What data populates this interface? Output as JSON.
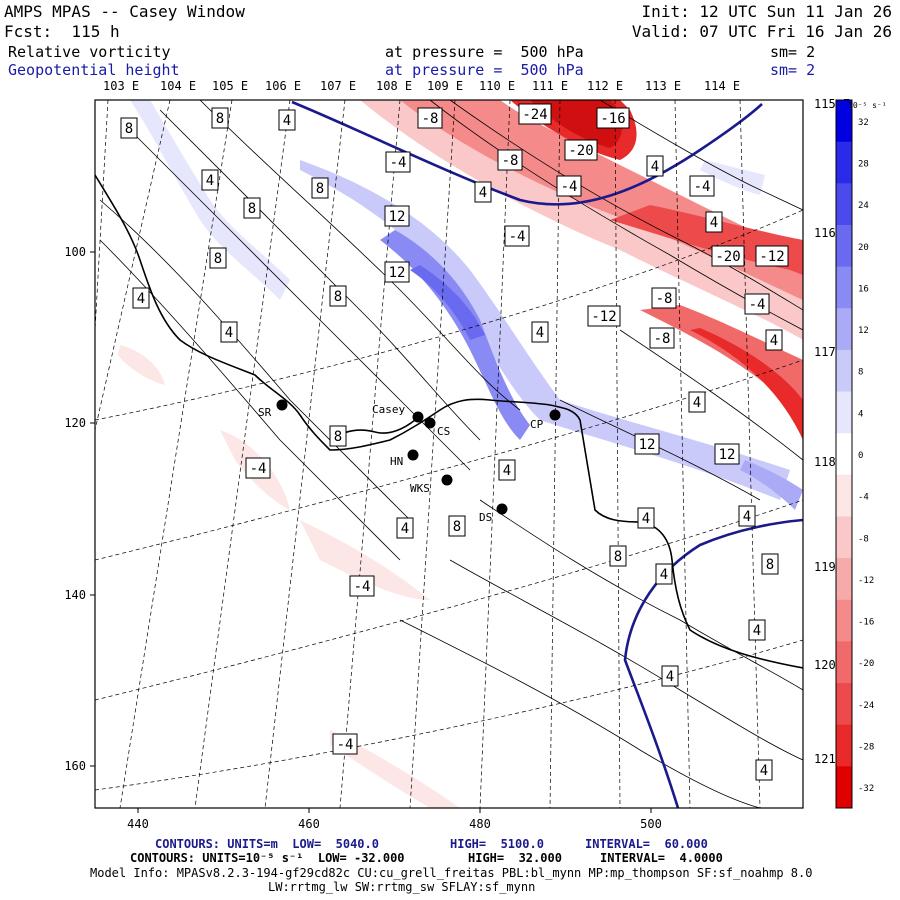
{
  "header": {
    "model": "AMPS MPAS -- Casey Window",
    "forecast": "Fcst:  115 h",
    "init": "Init: 12 UTC Sun 11 Jan 26",
    "valid": "Valid: 07 UTC Fri 16 Jan 26",
    "field1_name": "Relative vorticity",
    "field1_level": "at pressure =  500 hPa",
    "field1_sm": "sm= 2",
    "field2_name": "Geopotential height",
    "field2_level": "at pressure =  500 hPa",
    "field2_sm": "sm= 2"
  },
  "map": {
    "lon_top_labels": [
      "103 E",
      "104 E",
      "105 E",
      "106 E",
      "107 E",
      "108 E",
      "109 E",
      "110 E",
      "111 E",
      "112 E",
      "113 E",
      "114 E"
    ],
    "lon_right_labels": [
      "115 E",
      "116 E",
      "117 E",
      "118 E",
      "119 E",
      "120 E",
      "121 E"
    ],
    "x_axis_ticks": [
      "440",
      "460",
      "480",
      "500"
    ],
    "y_axis_ticks": [
      "100",
      "120",
      "140",
      "160"
    ],
    "stations": [
      {
        "id": "SR",
        "label": "SR"
      },
      {
        "id": "Casey",
        "label": "Casey"
      },
      {
        "id": "CS",
        "label": "CS"
      },
      {
        "id": "HN",
        "label": "HN"
      },
      {
        "id": "WKS",
        "label": "WKS"
      },
      {
        "id": "DS",
        "label": "DS"
      },
      {
        "id": "CP",
        "label": "CP"
      }
    ],
    "contour_labels": [
      "8",
      "8",
      "4",
      "-8",
      "-24",
      "-16",
      "-20",
      "4",
      "-4",
      "-8",
      "-4",
      "4",
      "8",
      "-4",
      "8",
      "4",
      "12",
      "-4",
      "4",
      "-20",
      "-12",
      "8",
      "12",
      "-8",
      "-4",
      "4",
      "-12",
      "-8",
      "4",
      "4",
      "8",
      "4",
      "4",
      "4",
      "8",
      "12",
      "-4",
      "4",
      "12",
      "8",
      "4",
      "4",
      "8",
      "4",
      "8",
      "4",
      "-4",
      "4",
      "4",
      "-4",
      "4"
    ],
    "colors": {
      "positive": "#3b3bd9",
      "negative": "#e8201a",
      "height_contour": "#1a1a8c",
      "coast": "#000000"
    }
  },
  "colorbar": {
    "unit_label": "10⁻⁵ s⁻¹",
    "tick_labels": [
      "32",
      "28",
      "24",
      "20",
      "16",
      "12",
      "8",
      "4",
      "0",
      "-4",
      "-8",
      "-12",
      "-16",
      "-20",
      "-24",
      "-28",
      "-32"
    ],
    "colors": [
      "#0000e0",
      "#2a2ae8",
      "#4b4bed",
      "#6a6af0",
      "#8a8af4",
      "#aaaaf7",
      "#cacafa",
      "#e6e6fc",
      "#ffffff",
      "#fce6e6",
      "#fac8c8",
      "#f7aaaa",
      "#f48a8a",
      "#f06a6a",
      "#ed4b4b",
      "#e82a2a",
      "#e00000"
    ]
  },
  "footer": {
    "line1_a": "CONTOURS: UNITS=m  LOW=  5040.0",
    "line1_b": "HIGH=  5100.0",
    "line1_c": "INTERVAL=  60.000",
    "line2_a": "CONTOURS: UNITS=10⁻⁵ s⁻¹  LOW= -32.000",
    "line2_b": "HIGH=  32.000",
    "line2_c": "INTERVAL=  4.0000",
    "line3": "Model Info: MPASv8.2.3-194-gf29cd82c CU:cu_grell_freitas PBL:bl_mynn MP:mp_thompson SF:sf_noahmp 8.0",
    "line4": "LW:rrtmg_lw SW:rrtmg_sw SFLAY:sf_mynn"
  }
}
